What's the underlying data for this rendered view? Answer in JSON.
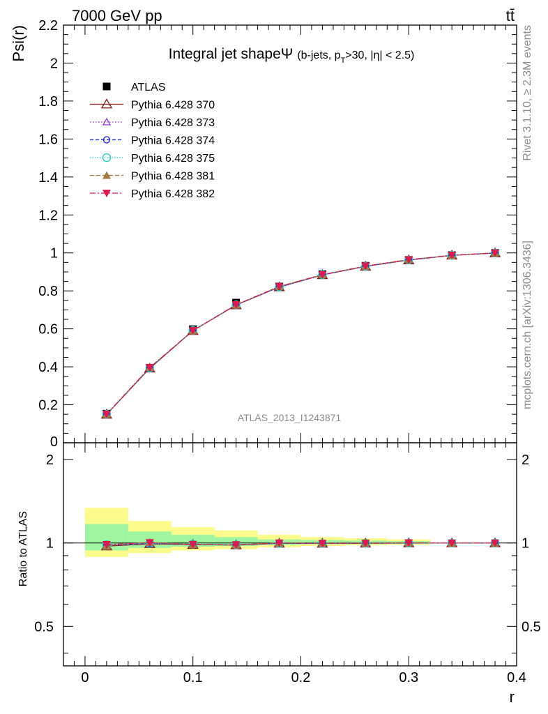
{
  "header": {
    "energy": "7000 GeV pp",
    "process": "tt̄",
    "side_rivet": "Rivet 3.1.10, ≥ 2.3M events",
    "side_site": "mcplots.cern.ch [arXiv:1306.3436]",
    "watermark": "ATLAS_2013_I1243871"
  },
  "chart_data": {
    "type": "line",
    "title": "Integral jet shapeΨ",
    "subtitle_parts": {
      "pre": "(b-jets, p",
      "sub": "T",
      "post": ">30, |η| < 2.5)"
    },
    "ylabel": "Psi(r)",
    "xlabel": "r",
    "ratio_ylabel": "Ratio to ATLAS",
    "xlim": [
      -0.02,
      0.4
    ],
    "ylim": [
      0,
      2.2
    ],
    "ratio_ylim": [
      0.36,
      2.3
    ],
    "x_ticks": [
      "0",
      "0.1",
      "0.2",
      "0.3",
      "0.4"
    ],
    "y_ticks": [
      "0.2",
      "0.4",
      "0.6",
      "0.8",
      "1",
      "1.2",
      "1.4",
      "1.6",
      "1.8",
      "2",
      "2.2"
    ],
    "y_zero_tick": "0",
    "ratio_ticks": [
      "0.5",
      "1",
      "2"
    ],
    "x": [
      0.02,
      0.06,
      0.1,
      0.14,
      0.18,
      0.22,
      0.26,
      0.3,
      0.34,
      0.38
    ],
    "data": {
      "name": "ATLAS",
      "values": [
        0.153,
        0.395,
        0.598,
        0.738,
        0.823,
        0.888,
        0.932,
        0.963,
        0.988,
        1.0
      ]
    },
    "bands": {
      "bin_edges": [
        0.0,
        0.04,
        0.08,
        0.12,
        0.16,
        0.2,
        0.24,
        0.28,
        0.32
      ],
      "inner": [
        [
          0.94,
          1.17
        ],
        [
          0.96,
          1.1
        ],
        [
          0.97,
          1.07
        ],
        [
          0.975,
          1.05
        ],
        [
          0.985,
          1.03
        ],
        [
          0.99,
          1.025
        ],
        [
          0.99,
          1.02
        ],
        [
          0.995,
          1.015
        ]
      ],
      "outer": [
        [
          0.89,
          1.34
        ],
        [
          0.92,
          1.2
        ],
        [
          0.94,
          1.14
        ],
        [
          0.95,
          1.11
        ],
        [
          0.965,
          1.07
        ],
        [
          0.975,
          1.05
        ],
        [
          0.98,
          1.04
        ],
        [
          0.985,
          1.03
        ]
      ]
    },
    "series": [
      {
        "name": "Pythia 6.428 370",
        "color": "#8b1a1a",
        "marker": "triangle-open",
        "dash": "",
        "values": [
          0.149,
          0.392,
          0.59,
          0.725,
          0.82,
          0.884,
          0.929,
          0.962,
          0.987,
          0.999
        ]
      },
      {
        "name": "Pythia 6.428 373",
        "color": "#8a2be2",
        "marker": "triangle-open-small",
        "dash": "1.5,2.5",
        "values": [
          0.15,
          0.393,
          0.592,
          0.727,
          0.821,
          0.885,
          0.93,
          0.963,
          0.987,
          1.0
        ]
      },
      {
        "name": "Pythia 6.428 374",
        "color": "#1c1ce6",
        "marker": "circle-open",
        "dash": "5,3",
        "values": [
          0.15,
          0.394,
          0.591,
          0.726,
          0.82,
          0.884,
          0.93,
          0.963,
          0.987,
          1.0
        ]
      },
      {
        "name": "Pythia 6.428 375",
        "color": "#19d3c5",
        "marker": "circle-open-big",
        "dash": "1.5,2",
        "values": [
          0.151,
          0.394,
          0.592,
          0.727,
          0.821,
          0.885,
          0.93,
          0.963,
          0.987,
          1.0
        ]
      },
      {
        "name": "Pythia 6.428 381",
        "color": "#a57a3e",
        "marker": "triangle-filled",
        "dash": "6,3",
        "values": [
          0.15,
          0.397,
          0.59,
          0.726,
          0.824,
          0.886,
          0.931,
          0.965,
          0.987,
          1.0
        ]
      },
      {
        "name": "Pythia 6.428 382",
        "color": "#e0184e",
        "marker": "triangle-down-filled",
        "dash": "8,3,2,3",
        "values": [
          0.151,
          0.396,
          0.591,
          0.727,
          0.823,
          0.885,
          0.931,
          0.964,
          0.988,
          1.0
        ]
      }
    ],
    "colors": {
      "band_inner": "#a0f5a0",
      "band_outer": "#fbfb8c",
      "data_marker": "#000000"
    },
    "grid": false,
    "legend_position": "top-left"
  }
}
